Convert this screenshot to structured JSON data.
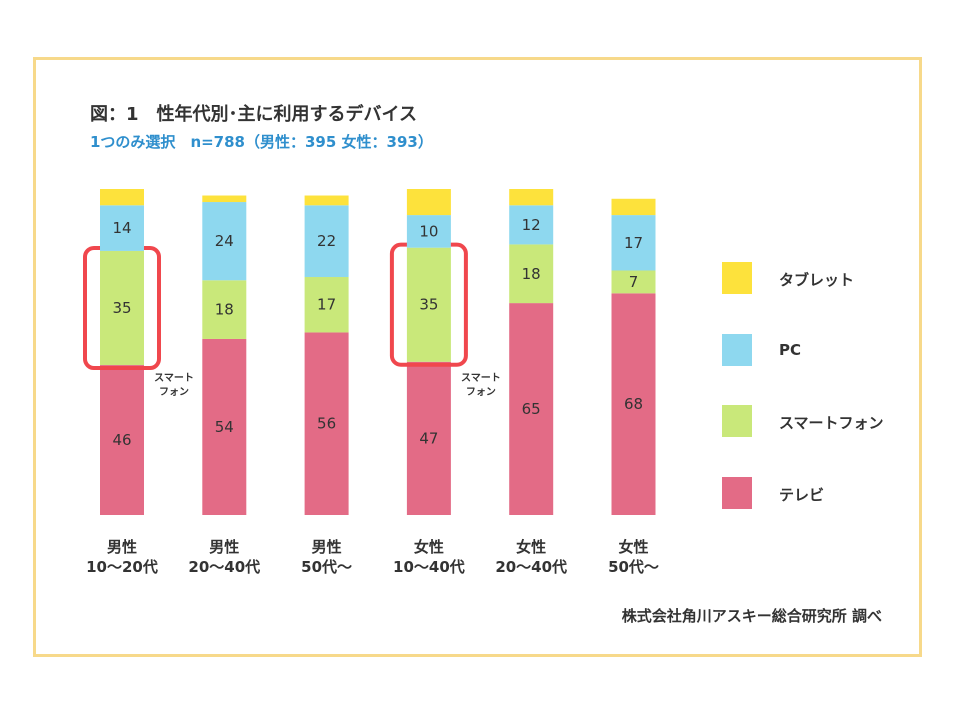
{
  "header": {
    "title": "図：1　性年代別･主に利用するデバイス",
    "subtitle": "1つのみ選択　n=788（男性：395 女性：393）"
  },
  "chart_data": {
    "type": "bar",
    "stacked": true,
    "title": "図：1　性年代別･主に利用するデバイス",
    "categories": [
      [
        "男性",
        "10～20代"
      ],
      [
        "男性",
        "20～40代"
      ],
      [
        "男性",
        "50代～"
      ],
      [
        "女性",
        "10～40代"
      ],
      [
        "女性",
        "20～40代"
      ],
      [
        "女性",
        "50代～"
      ]
    ],
    "series": [
      {
        "name": "テレビ",
        "color": "#e36b86",
        "values": [
          46,
          54,
          56,
          47,
          65,
          68
        ]
      },
      {
        "name": "スマートフォン",
        "color": "#c9e87a",
        "values": [
          35,
          18,
          17,
          35,
          18,
          7
        ]
      },
      {
        "name": "PC",
        "color": "#8ed8ef",
        "values": [
          14,
          24,
          22,
          10,
          12,
          17
        ]
      },
      {
        "name": "タブレット",
        "color": "#fde23c",
        "values": [
          5,
          2,
          3,
          8,
          5,
          5
        ]
      }
    ],
    "label_series": [
      "テレビ",
      "スマートフォン",
      "PC"
    ],
    "highlighted_segments": [
      {
        "category_index": 0,
        "series": "スマートフォン"
      },
      {
        "category_index": 3,
        "series": "スマートフォン"
      }
    ],
    "highlight_color": "#f0474d",
    "annotations": [
      {
        "category_index": 0,
        "text": [
          "スマート",
          "フォン"
        ]
      },
      {
        "category_index": 3,
        "text": [
          "スマート",
          "フォン"
        ]
      }
    ],
    "ylim": [
      0,
      100
    ],
    "legend_order": [
      "タブレット",
      "PC",
      "スマートフォン",
      "テレビ"
    ],
    "legend_position": "right"
  },
  "footer": {
    "source": "株式会社角川アスキー総合研究所 調べ"
  }
}
